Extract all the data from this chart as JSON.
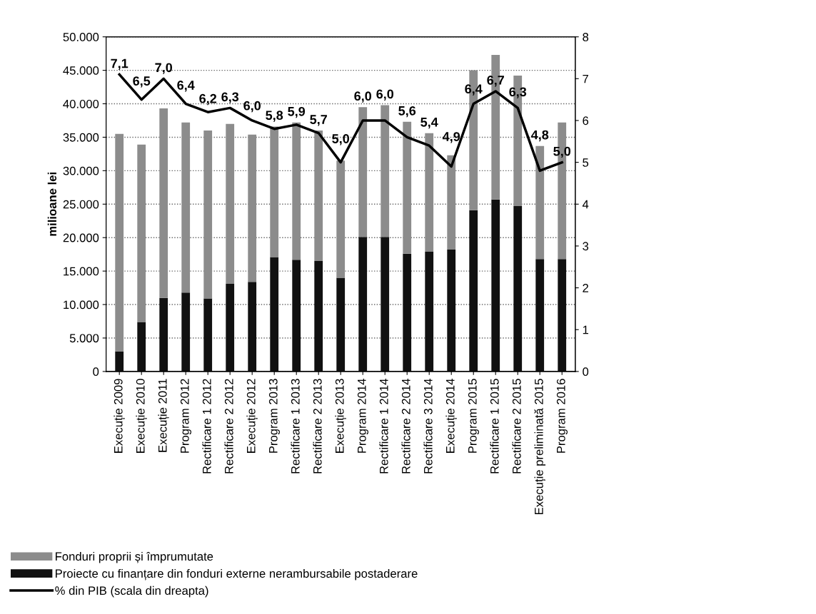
{
  "chart_data": {
    "type": "bar",
    "stacked": true,
    "ylabel": "milioane lei",
    "categories": [
      "Execuție 2009",
      "Execuție 2010",
      "Execuție 2011",
      "Program 2012",
      "Rectificare 1 2012",
      "Rectificare 2 2012",
      "Execuție 2012",
      "Program 2013",
      "Rectificare 1 2013",
      "Rectificare 2 2013",
      "Execuție 2013",
      "Program 2014",
      "Rectificare 1 2014",
      "Rectificare 2 2014",
      "Rectificare 3 2014",
      "Execuție 2014",
      "Program 2015",
      "Rectificare 1 2015",
      "Rectificare 2 2015",
      "Execuție preliminată 2015",
      "Program 2016"
    ],
    "series": [
      {
        "name": "Proiecte cu finanțare din fonduri externe nerambursabile postaderare",
        "color": "#111111",
        "values": [
          3000,
          7400,
          11000,
          11800,
          10900,
          13100,
          13400,
          17100,
          16700,
          16500,
          14000,
          20100,
          20100,
          17600,
          17900,
          18200,
          24100,
          25700,
          24700,
          16800,
          16800
        ]
      },
      {
        "name": "Fonduri proprii și împrumutate",
        "color": "#8c8c8c",
        "values": [
          32500,
          26500,
          28300,
          25400,
          25100,
          23900,
          22000,
          19500,
          20500,
          19500,
          17500,
          19400,
          19700,
          19700,
          17700,
          14100,
          20900,
          21600,
          19500,
          16900,
          20400
        ]
      },
      {
        "name": "% din PIB (scala din dreapta)",
        "type": "line",
        "axis": "y2",
        "color": "#000000",
        "values": [
          7.1,
          6.5,
          7.0,
          6.4,
          6.2,
          6.3,
          6.0,
          5.8,
          5.9,
          5.7,
          5.0,
          6.0,
          6.0,
          5.6,
          5.4,
          4.9,
          6.4,
          6.7,
          6.3,
          4.8,
          5.0
        ],
        "value_labels": [
          "7,1",
          "6,5",
          "7,0",
          "6,4",
          "6,2",
          "6,3",
          "6,0",
          "5,8",
          "5,9",
          "5,7",
          "5,0",
          "6,0",
          "6,0",
          "5,6",
          "5,4",
          "4,9",
          "6,4",
          "6,7",
          "6,3",
          "4,8",
          "5,0"
        ]
      }
    ],
    "ylim": [
      0,
      50000
    ],
    "yticks": [
      {
        "value": 0,
        "label": "0"
      },
      {
        "value": 5000,
        "label": "5.000"
      },
      {
        "value": 10000,
        "label": "10.000"
      },
      {
        "value": 15000,
        "label": "15.000"
      },
      {
        "value": 20000,
        "label": "20.000"
      },
      {
        "value": 25000,
        "label": "25.000"
      },
      {
        "value": 30000,
        "label": "30.000"
      },
      {
        "value": 35000,
        "label": "35.000"
      },
      {
        "value": 40000,
        "label": "40.000"
      },
      {
        "value": 45000,
        "label": "45.000"
      },
      {
        "value": 50000,
        "label": "50.000"
      }
    ],
    "y2lim": [
      0,
      8
    ],
    "y2ticks": [
      0,
      1,
      2,
      3,
      4,
      5,
      6,
      7,
      8
    ],
    "grid": "y",
    "legend": "bottom left",
    "marker": "none",
    "line_style": "solid"
  }
}
